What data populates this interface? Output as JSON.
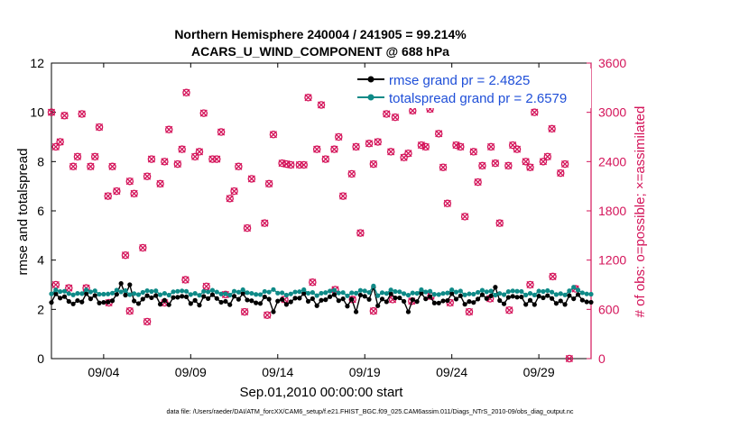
{
  "chart_data": {
    "type": "line",
    "title_line1": "Northern Hemisphere 240004 / 241905 = 99.214%",
    "title_line2": "ACARS_U_WIND_COMPONENT @ 688 hPa",
    "xlabel": "Sep.01,2010 00:00:00 start",
    "ylabel_left": "rmse and totalspread",
    "ylabel_right": "# of obs: o=possible; ×=assimilated",
    "footer": "data file: /Users/raeder/DAI/ATM_forcXX/CAM6_setup/f.e21.FHIST_BGC.f09_025.CAM6assim.011/Diags_NTrS_2010-09/obs_diag_output.nc",
    "xlim": [
      1,
      32
    ],
    "ylim_left": [
      0,
      12
    ],
    "ylim_right": [
      0,
      3600
    ],
    "x_ticks": [
      {
        "value": 4,
        "label": "09/04"
      },
      {
        "value": 9,
        "label": "09/09"
      },
      {
        "value": 14,
        "label": "09/14"
      },
      {
        "value": 19,
        "label": "09/19"
      },
      {
        "value": 24,
        "label": "09/24"
      },
      {
        "value": 29,
        "label": "09/29"
      }
    ],
    "y_ticks_left": [
      "0",
      "2",
      "4",
      "6",
      "8",
      "10",
      "12"
    ],
    "y_ticks_right": [
      "0",
      "600",
      "1200",
      "1800",
      "2400",
      "3000",
      "3600"
    ],
    "legend": [
      {
        "label": "rmse grand pr = 2.4825",
        "color": "#000000"
      },
      {
        "label": "totalspread grand pr = 2.6579",
        "color": "#0e8a87"
      }
    ],
    "colors": {
      "rmse": "#000000",
      "spread": "#0e8a87",
      "obs": "#d4145a",
      "legend_text": "#1f4fd8"
    },
    "series_rmse": {
      "name": "rmse",
      "base": 2.4,
      "sin_amp": 0.15,
      "alt_amp": 0.12,
      "spikes": [
        [
          5,
          3.05
        ],
        [
          5.5,
          3.0
        ],
        [
          19.4,
          2.9
        ],
        [
          21.4,
          1.9
        ],
        [
          13.8,
          1.9
        ],
        [
          18.5,
          1.9
        ],
        [
          26.5,
          2.9
        ],
        [
          31.2,
          2.6
        ]
      ]
    },
    "series_spread": {
      "name": "totalspread",
      "base": 2.68,
      "sin_amp": 0.08,
      "alt_amp": 0.05,
      "spikes": [
        [
          19.4,
          2.95
        ],
        [
          31.0,
          2.9
        ]
      ]
    },
    "obs_points": [
      {
        "x": 1.0,
        "y": 3000
      },
      {
        "x": 1.25,
        "y": 2580
      },
      {
        "x": 1.5,
        "y": 2640
      },
      {
        "x": 1.75,
        "y": 2960
      },
      {
        "x": 2.25,
        "y": 2340
      },
      {
        "x": 2.5,
        "y": 2460
      },
      {
        "x": 2.75,
        "y": 2980
      },
      {
        "x": 3.25,
        "y": 2340
      },
      {
        "x": 3.5,
        "y": 2460
      },
      {
        "x": 3.75,
        "y": 2820
      },
      {
        "x": 4.25,
        "y": 1980
      },
      {
        "x": 4.5,
        "y": 2340
      },
      {
        "x": 4.75,
        "y": 2040
      },
      {
        "x": 5.25,
        "y": 1260
      },
      {
        "x": 5.5,
        "y": 2160
      },
      {
        "x": 5.75,
        "y": 2010
      },
      {
        "x": 6.25,
        "y": 1350
      },
      {
        "x": 6.5,
        "y": 2220
      },
      {
        "x": 6.75,
        "y": 2430
      },
      {
        "x": 7.25,
        "y": 2130
      },
      {
        "x": 7.5,
        "y": 2400
      },
      {
        "x": 7.75,
        "y": 2790
      },
      {
        "x": 8.25,
        "y": 2370
      },
      {
        "x": 8.5,
        "y": 2550
      },
      {
        "x": 8.75,
        "y": 3240
      },
      {
        "x": 9.25,
        "y": 2460
      },
      {
        "x": 9.5,
        "y": 2520
      },
      {
        "x": 9.75,
        "y": 2990
      },
      {
        "x": 10.25,
        "y": 2430
      },
      {
        "x": 10.5,
        "y": 2430
      },
      {
        "x": 10.75,
        "y": 2760
      },
      {
        "x": 11.25,
        "y": 1950
      },
      {
        "x": 11.5,
        "y": 2040
      },
      {
        "x": 11.75,
        "y": 2340
      },
      {
        "x": 12.25,
        "y": 1590
      },
      {
        "x": 12.5,
        "y": 2190
      },
      {
        "x": 13.25,
        "y": 1650
      },
      {
        "x": 13.5,
        "y": 2130
      },
      {
        "x": 13.75,
        "y": 2730
      },
      {
        "x": 14.25,
        "y": 2380
      },
      {
        "x": 14.5,
        "y": 2370
      },
      {
        "x": 14.75,
        "y": 2360
      },
      {
        "x": 15.25,
        "y": 2360
      },
      {
        "x": 15.5,
        "y": 2360
      },
      {
        "x": 15.75,
        "y": 3180
      },
      {
        "x": 16.25,
        "y": 2550
      },
      {
        "x": 16.5,
        "y": 3090
      },
      {
        "x": 16.75,
        "y": 2430
      },
      {
        "x": 17.25,
        "y": 2550
      },
      {
        "x": 17.5,
        "y": 2700
      },
      {
        "x": 17.75,
        "y": 1980
      },
      {
        "x": 18.25,
        "y": 2250
      },
      {
        "x": 18.5,
        "y": 2580
      },
      {
        "x": 18.75,
        "y": 1530
      },
      {
        "x": 19.25,
        "y": 2620
      },
      {
        "x": 19.5,
        "y": 2370
      },
      {
        "x": 19.75,
        "y": 2640
      },
      {
        "x": 20.25,
        "y": 2980
      },
      {
        "x": 20.5,
        "y": 2520
      },
      {
        "x": 20.75,
        "y": 2940
      },
      {
        "x": 21.25,
        "y": 2450
      },
      {
        "x": 21.5,
        "y": 2500
      },
      {
        "x": 21.75,
        "y": 3020
      },
      {
        "x": 22.25,
        "y": 2600
      },
      {
        "x": 22.5,
        "y": 2580
      },
      {
        "x": 22.75,
        "y": 3040
      },
      {
        "x": 23.25,
        "y": 2740
      },
      {
        "x": 23.5,
        "y": 2330
      },
      {
        "x": 23.75,
        "y": 1890
      },
      {
        "x": 24.25,
        "y": 2600
      },
      {
        "x": 24.5,
        "y": 2580
      },
      {
        "x": 24.75,
        "y": 1730
      },
      {
        "x": 25.25,
        "y": 2520
      },
      {
        "x": 25.5,
        "y": 2150
      },
      {
        "x": 25.75,
        "y": 2350
      },
      {
        "x": 26.25,
        "y": 2580
      },
      {
        "x": 26.5,
        "y": 2380
      },
      {
        "x": 26.75,
        "y": 1650
      },
      {
        "x": 27.25,
        "y": 2350
      },
      {
        "x": 27.5,
        "y": 2600
      },
      {
        "x": 27.75,
        "y": 2550
      },
      {
        "x": 28.25,
        "y": 2400
      },
      {
        "x": 28.5,
        "y": 2330
      },
      {
        "x": 28.75,
        "y": 3000
      },
      {
        "x": 29.25,
        "y": 2400
      },
      {
        "x": 29.5,
        "y": 2460
      },
      {
        "x": 29.75,
        "y": 2800
      },
      {
        "x": 30.25,
        "y": 2260
      },
      {
        "x": 30.5,
        "y": 2370
      },
      {
        "x": 30.75,
        "y": 0
      }
    ],
    "low_obs": [
      {
        "x": 1.25,
        "y": 900
      },
      {
        "x": 2.0,
        "y": 860
      },
      {
        "x": 3.0,
        "y": 860
      },
      {
        "x": 4.3,
        "y": 680
      },
      {
        "x": 5.5,
        "y": 580
      },
      {
        "x": 6.5,
        "y": 450
      },
      {
        "x": 7.5,
        "y": 680
      },
      {
        "x": 8.7,
        "y": 960
      },
      {
        "x": 9.9,
        "y": 880
      },
      {
        "x": 11.0,
        "y": 780
      },
      {
        "x": 12.1,
        "y": 570
      },
      {
        "x": 13.4,
        "y": 530
      },
      {
        "x": 14.4,
        "y": 720
      },
      {
        "x": 16.0,
        "y": 930
      },
      {
        "x": 17.3,
        "y": 840
      },
      {
        "x": 18.3,
        "y": 720
      },
      {
        "x": 19.5,
        "y": 580
      },
      {
        "x": 20.6,
        "y": 720
      },
      {
        "x": 21.7,
        "y": 700
      },
      {
        "x": 22.8,
        "y": 760
      },
      {
        "x": 23.9,
        "y": 680
      },
      {
        "x": 25.0,
        "y": 570
      },
      {
        "x": 26.2,
        "y": 730
      },
      {
        "x": 27.3,
        "y": 590
      },
      {
        "x": 28.5,
        "y": 900
      },
      {
        "x": 29.8,
        "y": 1000
      },
      {
        "x": 31.1,
        "y": 850
      }
    ]
  }
}
